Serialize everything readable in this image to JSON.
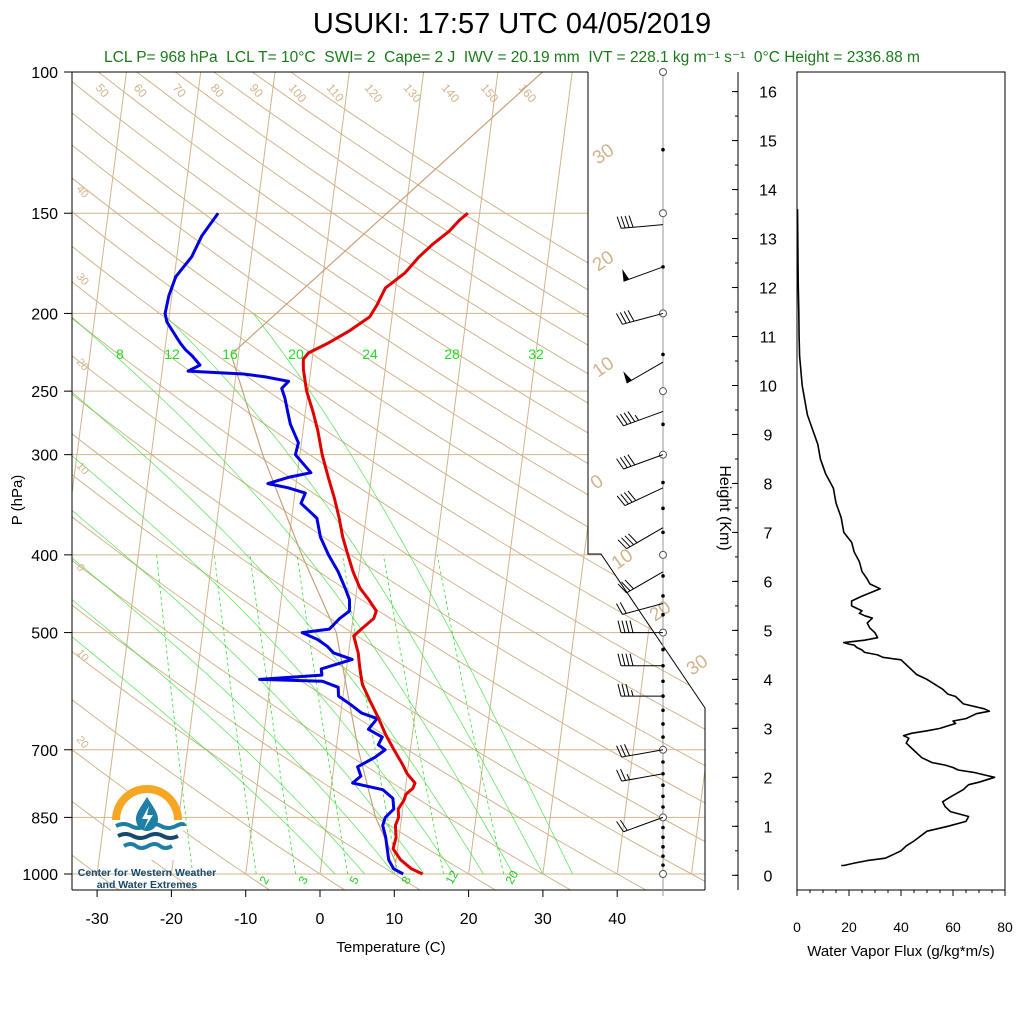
{
  "title": "USUKI: 17:57 UTC 04/05/2019",
  "subtitle": {
    "lcl_p": "LCL P= 968 hPa",
    "lcl_t": "LCL T= 10°C",
    "swi": "SWI= 2",
    "cape": "Cape= 2 J",
    "iwv": "IWV = 20.19 mm",
    "ivt": "IVT = 228.1 kg m⁻¹ s⁻¹",
    "zero_c_height": "0°C Height = 2336.88 m"
  },
  "logo": {
    "line1": "Center for Western Weather",
    "line2": "and Water Extremes",
    "colors": {
      "orange": "#f5a623",
      "teal": "#1c7fa3",
      "navy": "#16496e"
    }
  },
  "colors": {
    "temperature": "#e00000",
    "dewpoint": "#0000e0",
    "isotherm": "#d2b48c",
    "dry_adiabat": "#d2b48c",
    "moist_adiabat": "#33dd33",
    "mixing_ratio": "#33dd33",
    "parcel": "#c8a07a",
    "flux": "#000000",
    "subtitle": "#1a7a1a"
  },
  "chart_data": [
    {
      "type": "line",
      "name": "skew-t",
      "xlabel": "Temperature (C)",
      "ylabel": "P (hPa)",
      "xticks": [
        -30,
        -20,
        -10,
        0,
        10,
        20,
        30,
        40
      ],
      "yticks": [
        100,
        150,
        200,
        250,
        300,
        400,
        500,
        700,
        850,
        1000
      ],
      "isotherm_labels": [
        {
          "t": 30,
          "label": "30"
        },
        {
          "t": 20,
          "label": "20"
        },
        {
          "t": 10,
          "label": "10"
        },
        {
          "t": 0,
          "label": "0"
        },
        {
          "t": -10,
          "label": "10"
        },
        {
          "t": -20,
          "label": "20"
        },
        {
          "t": -30,
          "label": "30"
        }
      ],
      "left_edge_labels": [
        {
          "t": 40,
          "p": 140,
          "label": "40"
        },
        {
          "t": 30,
          "p": 180,
          "label": "30"
        },
        {
          "t": 20,
          "p": 230,
          "label": "20"
        },
        {
          "t": 10,
          "p": 310,
          "label": "10"
        },
        {
          "t": 0,
          "p": 415,
          "label": "0"
        },
        {
          "t": -10,
          "p": 530,
          "label": "10"
        },
        {
          "t": -20,
          "p": 680,
          "label": "20"
        }
      ],
      "theta_labels": [
        "50",
        "60",
        "70",
        "80",
        "90",
        "100",
        "110",
        "120",
        "130",
        "140",
        "150",
        "160"
      ],
      "theta_e_labels": [
        "8",
        "12",
        "16",
        "20",
        "24",
        "28",
        "32"
      ],
      "mixing_ratio_labels": [
        "2",
        "3",
        "5",
        "8",
        "12",
        "20"
      ],
      "temperature": [
        [
          1000,
          13.8
        ],
        [
          985,
          12.2
        ],
        [
          960,
          10.6
        ],
        [
          930,
          9.4
        ],
        [
          900,
          9.6
        ],
        [
          870,
          9.3
        ],
        [
          850,
          9.6
        ],
        [
          830,
          9.4
        ],
        [
          810,
          10.0
        ],
        [
          795,
          10.2
        ],
        [
          782,
          11.0
        ],
        [
          770,
          11.2
        ],
        [
          750,
          10.0
        ],
        [
          730,
          9.2
        ],
        [
          700,
          7.8
        ],
        [
          670,
          6.4
        ],
        [
          640,
          5.2
        ],
        [
          610,
          3.8
        ],
        [
          580,
          2.4
        ],
        [
          555,
          1.8
        ],
        [
          530,
          1.3
        ],
        [
          505,
          0.4
        ],
        [
          495,
          1.3
        ],
        [
          480,
          2.8
        ],
        [
          470,
          3.0
        ],
        [
          455,
          1.8
        ],
        [
          440,
          0.4
        ],
        [
          420,
          -0.8
        ],
        [
          400,
          -1.8
        ],
        [
          380,
          -2.8
        ],
        [
          360,
          -3.6
        ],
        [
          340,
          -4.6
        ],
        [
          320,
          -5.8
        ],
        [
          300,
          -7.0
        ],
        [
          280,
          -8.0
        ],
        [
          265,
          -9.0
        ],
        [
          250,
          -10.2
        ],
        [
          235,
          -11.0
        ],
        [
          228,
          -11.2
        ],
        [
          224,
          -10.6
        ],
        [
          218,
          -8.2
        ],
        [
          210,
          -5.4
        ],
        [
          202,
          -3.0
        ],
        [
          195,
          -2.2
        ],
        [
          186,
          -1.4
        ],
        [
          178,
          1.0
        ],
        [
          170,
          2.6
        ],
        [
          164,
          4.2
        ],
        [
          158,
          6.2
        ],
        [
          153,
          7.4
        ],
        [
          150,
          8.4
        ]
      ],
      "dewpoint": [
        [
          1000,
          11.2
        ],
        [
          985,
          9.8
        ],
        [
          960,
          9.0
        ],
        [
          930,
          8.6
        ],
        [
          900,
          8.2
        ],
        [
          870,
          7.6
        ],
        [
          850,
          7.8
        ],
        [
          830,
          8.8
        ],
        [
          805,
          8.5
        ],
        [
          785,
          7.0
        ],
        [
          770,
          2.8
        ],
        [
          755,
          3.8
        ],
        [
          735,
          3.2
        ],
        [
          715,
          5.4
        ],
        [
          700,
          6.6
        ],
        [
          690,
          5.6
        ],
        [
          675,
          6.0
        ],
        [
          660,
          4.0
        ],
        [
          640,
          5.0
        ],
        [
          630,
          2.8
        ],
        [
          615,
          1.2
        ],
        [
          600,
          -0.6
        ],
        [
          585,
          -0.8
        ],
        [
          575,
          -3.0
        ],
        [
          572,
          -11.5
        ],
        [
          565,
          -3.2
        ],
        [
          555,
          -3.4
        ],
        [
          540,
          0.6
        ],
        [
          530,
          -2.0
        ],
        [
          520,
          -3.0
        ],
        [
          510,
          -4.4
        ],
        [
          500,
          -6.6
        ],
        [
          495,
          -3.0
        ],
        [
          480,
          -1.8
        ],
        [
          470,
          -0.6
        ],
        [
          455,
          -0.8
        ],
        [
          440,
          -1.6
        ],
        [
          420,
          -2.8
        ],
        [
          400,
          -4.4
        ],
        [
          380,
          -5.8
        ],
        [
          360,
          -6.6
        ],
        [
          345,
          -9.0
        ],
        [
          335,
          -8.6
        ],
        [
          330,
          -11.0
        ],
        [
          326,
          -13.8
        ],
        [
          320,
          -11.0
        ],
        [
          316,
          -8.2
        ],
        [
          300,
          -10.6
        ],
        [
          290,
          -10.4
        ],
        [
          275,
          -11.8
        ],
        [
          265,
          -12.4
        ],
        [
          255,
          -13.0
        ],
        [
          248,
          -13.6
        ],
        [
          243,
          -12.8
        ],
        [
          240,
          -16.0
        ],
        [
          238,
          -19.0
        ],
        [
          236,
          -26.5
        ],
        [
          232,
          -25.0
        ],
        [
          226,
          -26.2
        ],
        [
          222,
          -27.2
        ],
        [
          218,
          -28.0
        ],
        [
          212,
          -29.0
        ],
        [
          205,
          -30.2
        ],
        [
          200,
          -30.6
        ],
        [
          190,
          -30.4
        ],
        [
          180,
          -29.8
        ],
        [
          170,
          -28.0
        ],
        [
          160,
          -27.0
        ],
        [
          150,
          -25.2
        ]
      ],
      "parcel": [
        [
          968,
          10.0
        ],
        [
          850,
          6.5
        ],
        [
          700,
          3.0
        ],
        [
          500,
          -2.0
        ],
        [
          400,
          -8.0
        ],
        [
          300,
          -15.0
        ],
        [
          225,
          -21.0
        ],
        [
          100,
          16.0
        ]
      ]
    },
    {
      "type": "line",
      "name": "wind-profile",
      "barbs": [
        {
          "p": 1000,
          "dir": 0,
          "kts": 0
        },
        {
          "p": 975,
          "dir": 0,
          "kts": 0
        },
        {
          "p": 950,
          "dir": 0,
          "kts": 0
        },
        {
          "p": 925,
          "dir": 0,
          "kts": 0
        },
        {
          "p": 900,
          "dir": 0,
          "kts": 0
        },
        {
          "p": 875,
          "dir": 0,
          "kts": 0
        },
        {
          "p": 850,
          "dir": 0,
          "kts": 0
        },
        {
          "p": 825,
          "dir": 0,
          "kts": 0
        },
        {
          "p": 850,
          "dir": 250,
          "kts": 20
        },
        {
          "p": 750,
          "dir": 260,
          "kts": 25
        },
        {
          "p": 700,
          "dir": 260,
          "kts": 30
        },
        {
          "p": 600,
          "dir": 270,
          "kts": 35
        },
        {
          "p": 550,
          "dir": 270,
          "kts": 40
        },
        {
          "p": 500,
          "dir": 270,
          "kts": 40
        },
        {
          "p": 460,
          "dir": 255,
          "kts": 20
        },
        {
          "p": 420,
          "dir": 240,
          "kts": 30
        },
        {
          "p": 370,
          "dir": 240,
          "kts": 40
        },
        {
          "p": 330,
          "dir": 245,
          "kts": 40
        },
        {
          "p": 300,
          "dir": 250,
          "kts": 40
        },
        {
          "p": 265,
          "dir": 250,
          "kts": 45
        },
        {
          "p": 230,
          "dir": 240,
          "kts": 50
        },
        {
          "p": 200,
          "dir": 255,
          "kts": 40
        },
        {
          "p": 175,
          "dir": 250,
          "kts": 50
        },
        {
          "p": 155,
          "dir": 265,
          "kts": 40
        }
      ],
      "dots_p": [
        1000,
        975,
        950,
        925,
        900,
        875,
        850,
        825,
        800,
        775,
        750,
        725,
        700,
        675,
        650,
        625,
        600,
        575,
        550,
        525,
        500,
        475,
        450,
        425,
        400,
        375,
        350,
        325,
        300,
        275,
        250,
        225,
        200,
        175,
        150,
        125,
        100
      ],
      "circles_p": [
        1000,
        850,
        700,
        500,
        400,
        300,
        250,
        200,
        150,
        100
      ]
    },
    {
      "type": "line",
      "name": "water-vapor-flux",
      "xlabel": "Water Vapor Flux (g/kg*m/s)",
      "ylabel": "Height (Km)",
      "xlim": [
        0,
        80
      ],
      "ylim": [
        -0.3,
        16.4
      ],
      "xticks": [
        0,
        20,
        40,
        60,
        80
      ],
      "yticks": [
        0,
        1,
        2,
        3,
        4,
        5,
        6,
        7,
        8,
        9,
        10,
        11,
        12,
        13,
        14,
        15,
        16
      ],
      "x": [
        17,
        18,
        22,
        27,
        34,
        38,
        40,
        42,
        45,
        50,
        58,
        65,
        66,
        59,
        57,
        56,
        59,
        64,
        66,
        70,
        76,
        72,
        68,
        62,
        60,
        57,
        52,
        48,
        46,
        44,
        42,
        43,
        41,
        44,
        50,
        55,
        58,
        61,
        60,
        65,
        69,
        74,
        72,
        64,
        62,
        61,
        58,
        56,
        53,
        50,
        46,
        44,
        42,
        40,
        33,
        31,
        26,
        25,
        23,
        22,
        20,
        18,
        26,
        31,
        30,
        28,
        27,
        29,
        26,
        24,
        25,
        23,
        21,
        21,
        25,
        32,
        28,
        27,
        25,
        24,
        22,
        21,
        18,
        17,
        15,
        14,
        11,
        10,
        9,
        8,
        6,
        4,
        3,
        2,
        1.5,
        1,
        0.8,
        0.7,
        0.5,
        0.4,
        0.3,
        0.2
      ],
      "y": [
        0.2,
        0.2,
        0.25,
        0.3,
        0.35,
        0.45,
        0.5,
        0.6,
        0.7,
        0.9,
        1.0,
        1.1,
        1.2,
        1.3,
        1.4,
        1.5,
        1.6,
        1.75,
        1.85,
        1.9,
        2.0,
        2.05,
        2.1,
        2.15,
        2.2,
        2.25,
        2.3,
        2.4,
        2.5,
        2.6,
        2.7,
        2.8,
        2.85,
        2.9,
        2.95,
        3.0,
        3.05,
        3.1,
        3.15,
        3.2,
        3.3,
        3.35,
        3.4,
        3.5,
        3.6,
        3.65,
        3.7,
        3.8,
        3.9,
        4.0,
        4.1,
        4.2,
        4.3,
        4.4,
        4.45,
        4.5,
        4.55,
        4.6,
        4.65,
        4.7,
        4.72,
        4.75,
        4.8,
        4.85,
        4.95,
        5.05,
        5.15,
        5.25,
        5.3,
        5.35,
        5.4,
        5.45,
        5.5,
        5.6,
        5.7,
        5.85,
        5.95,
        6.05,
        6.2,
        6.4,
        6.6,
        6.8,
        7.0,
        7.3,
        7.6,
        7.9,
        8.2,
        8.35,
        8.5,
        8.8,
        9.1,
        9.4,
        9.7,
        10.0,
        10.3,
        10.6,
        11.0,
        11.5,
        12.0,
        12.5,
        13.0,
        13.6
      ]
    }
  ]
}
